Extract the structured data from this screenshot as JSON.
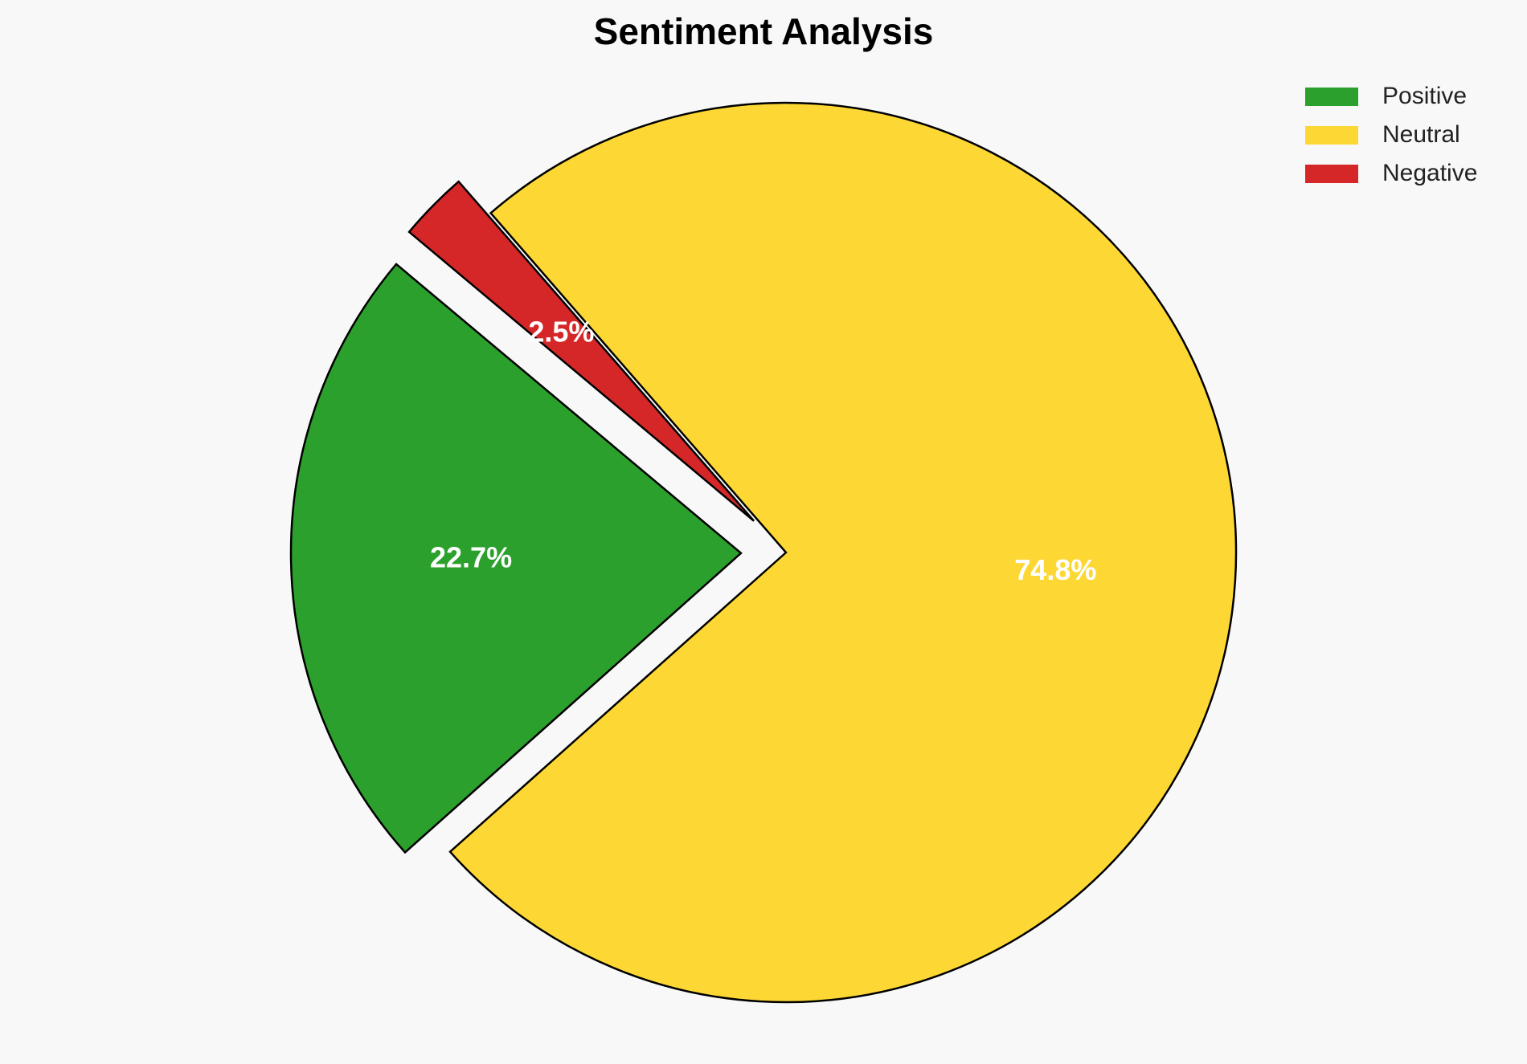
{
  "chart_data": {
    "type": "pie",
    "title": "Sentiment Analysis",
    "categories": [
      "Positive",
      "Neutral",
      "Negative"
    ],
    "values": [
      22.7,
      74.8,
      2.5
    ],
    "labels": [
      "22.7%",
      "74.8%",
      "2.5%"
    ],
    "colors": [
      "#2ca02c",
      "#fdd835",
      "#d62728"
    ],
    "exploded": true,
    "legend_position": "top-right"
  }
}
